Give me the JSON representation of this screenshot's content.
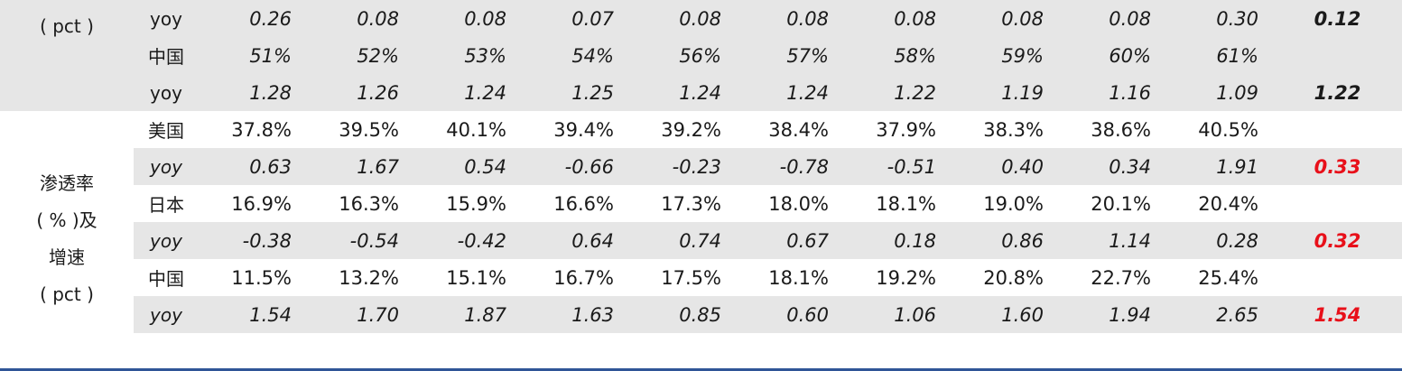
{
  "sections": [
    {
      "label_lines": [
        "( pct )"
      ],
      "rows": [
        {
          "cat": "yoy",
          "cat_italic": false,
          "values": [
            "0.26",
            "0.08",
            "0.08",
            "0.07",
            "0.08",
            "0.08",
            "0.08",
            "0.08",
            "0.08",
            "0.30"
          ],
          "values_italic": true,
          "last": "0.12",
          "last_red": false
        },
        {
          "cat": "中国",
          "cat_italic": false,
          "values": [
            "51%",
            "52%",
            "53%",
            "54%",
            "56%",
            "57%",
            "58%",
            "59%",
            "60%",
            "61%"
          ],
          "values_italic": true,
          "last": "",
          "last_red": false
        },
        {
          "cat": "yoy",
          "cat_italic": false,
          "values": [
            "1.28",
            "1.26",
            "1.24",
            "1.25",
            "1.24",
            "1.24",
            "1.22",
            "1.19",
            "1.16",
            "1.09"
          ],
          "values_italic": true,
          "last": "1.22",
          "last_red": false
        }
      ]
    },
    {
      "label_lines": [
        "渗透率",
        "( % )及",
        "增速",
        "( pct )"
      ],
      "rows": [
        {
          "cat": "美国",
          "cat_italic": false,
          "values": [
            "37.8%",
            "39.5%",
            "40.1%",
            "39.4%",
            "39.2%",
            "38.4%",
            "37.9%",
            "38.3%",
            "38.6%",
            "40.5%"
          ],
          "values_italic": false,
          "last": "",
          "last_red": false
        },
        {
          "cat": "yoy",
          "cat_italic": true,
          "values": [
            "0.63",
            "1.67",
            "0.54",
            "-0.66",
            "-0.23",
            "-0.78",
            "-0.51",
            "0.40",
            "0.34",
            "1.91"
          ],
          "values_italic": true,
          "last": "0.33",
          "last_red": true
        },
        {
          "cat": "日本",
          "cat_italic": false,
          "values": [
            "16.9%",
            "16.3%",
            "15.9%",
            "16.6%",
            "17.3%",
            "18.0%",
            "18.1%",
            "19.0%",
            "20.1%",
            "20.4%"
          ],
          "values_italic": false,
          "last": "",
          "last_red": false
        },
        {
          "cat": "yoy",
          "cat_italic": true,
          "values": [
            "-0.38",
            "-0.54",
            "-0.42",
            "0.64",
            "0.74",
            "0.67",
            "0.18",
            "0.86",
            "1.14",
            "0.28"
          ],
          "values_italic": true,
          "last": "0.32",
          "last_red": true
        },
        {
          "cat": "中国",
          "cat_italic": false,
          "values": [
            "11.5%",
            "13.2%",
            "15.1%",
            "16.7%",
            "17.5%",
            "18.1%",
            "19.2%",
            "20.8%",
            "22.7%",
            "25.4%"
          ],
          "values_italic": false,
          "last": "",
          "last_red": false
        },
        {
          "cat": "yoy",
          "cat_italic": true,
          "values": [
            "1.54",
            "1.70",
            "1.87",
            "1.63",
            "0.85",
            "0.60",
            "1.06",
            "1.60",
            "1.94",
            "2.65"
          ],
          "values_italic": true,
          "last": "1.54",
          "last_red": true
        }
      ]
    }
  ]
}
